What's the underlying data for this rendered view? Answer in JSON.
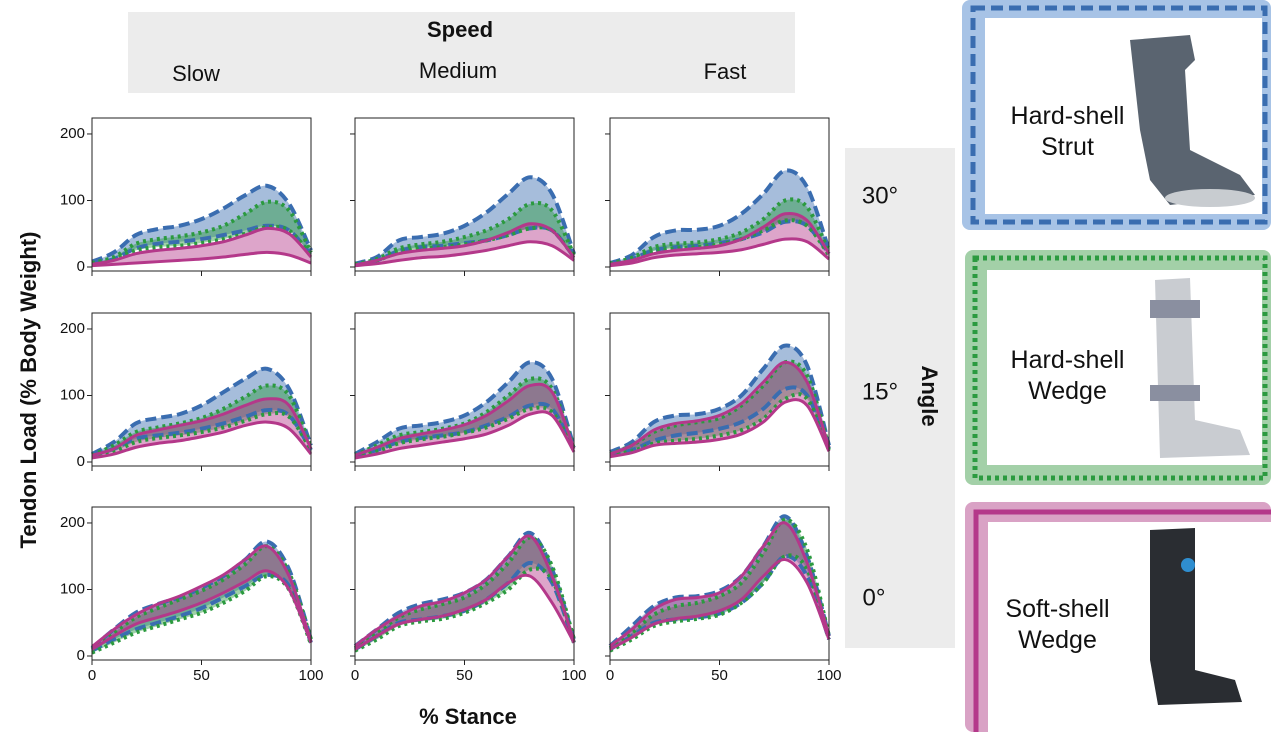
{
  "figure": {
    "speed_label": "Speed",
    "speed_levels": [
      "Slow",
      "Medium",
      "Fast"
    ],
    "angle_label": "Angle",
    "angle_levels": [
      "30°",
      "15°",
      "0°"
    ],
    "y_label": "Tendon Load (% Body Weight)",
    "x_label": "% Stance"
  },
  "legend": [
    {
      "name": "Hard-shell Strut",
      "color": "#3a6db0",
      "line_style": "dashed"
    },
    {
      "name": "Hard-shell Wedge",
      "color": "#2b9a3f",
      "line_style": "dotted"
    },
    {
      "name": "Soft-shell Wedge",
      "color": "#b4388a",
      "line_style": "solid"
    }
  ],
  "chart_data": [
    {
      "type": "band",
      "row": 0,
      "col": 0,
      "x": [
        0,
        10,
        20,
        30,
        40,
        50,
        60,
        70,
        80,
        90,
        100
      ],
      "xlim": [
        0,
        100
      ],
      "ylim": [
        -6,
        224
      ],
      "xticks": [
        0,
        50,
        100
      ],
      "yticks": [
        0,
        100,
        200
      ],
      "xtick_labels": false,
      "ytick_labels": true,
      "series": [
        {
          "upper": [
            8,
            22,
            48,
            57,
            62,
            72,
            88,
            108,
            122,
            95,
            25
          ],
          "lower": [
            5,
            12,
            28,
            35,
            38,
            42,
            48,
            55,
            62,
            55,
            18
          ]
        },
        {
          "upper": [
            6,
            15,
            35,
            42,
            46,
            52,
            62,
            80,
            98,
            85,
            22
          ],
          "lower": [
            4,
            12,
            25,
            30,
            32,
            36,
            42,
            50,
            60,
            55,
            18
          ]
        },
        {
          "upper": [
            4,
            10,
            20,
            25,
            28,
            32,
            38,
            48,
            58,
            50,
            15
          ],
          "lower": [
            2,
            4,
            6,
            8,
            10,
            12,
            15,
            19,
            22,
            18,
            6
          ]
        }
      ]
    },
    {
      "type": "band",
      "row": 0,
      "col": 1,
      "x": [
        0,
        10,
        20,
        30,
        40,
        50,
        60,
        70,
        80,
        90,
        100
      ],
      "xlim": [
        0,
        100
      ],
      "ylim": [
        -6,
        224
      ],
      "xticks": [
        0,
        50,
        100
      ],
      "yticks": [
        0,
        100,
        200
      ],
      "xtick_labels": false,
      "ytick_labels": false,
      "series": [
        {
          "upper": [
            5,
            15,
            40,
            45,
            50,
            62,
            82,
            110,
            135,
            110,
            20
          ],
          "lower": [
            4,
            10,
            24,
            30,
            32,
            36,
            40,
            48,
            58,
            55,
            15
          ]
        },
        {
          "upper": [
            4,
            12,
            28,
            34,
            38,
            45,
            55,
            72,
            95,
            85,
            18
          ],
          "lower": [
            3,
            10,
            22,
            28,
            30,
            34,
            40,
            48,
            58,
            55,
            15
          ]
        },
        {
          "upper": [
            3,
            10,
            20,
            25,
            28,
            32,
            40,
            52,
            65,
            55,
            14
          ],
          "lower": [
            2,
            5,
            10,
            14,
            16,
            20,
            25,
            32,
            38,
            32,
            10
          ]
        }
      ]
    },
    {
      "type": "band",
      "row": 0,
      "col": 2,
      "x": [
        0,
        10,
        20,
        30,
        40,
        50,
        60,
        70,
        80,
        90,
        100
      ],
      "xlim": [
        0,
        100
      ],
      "ylim": [
        -6,
        224
      ],
      "xticks": [
        0,
        50,
        100
      ],
      "yticks": [
        0,
        100,
        200
      ],
      "xtick_labels": false,
      "ytick_labels": false,
      "series": [
        {
          "upper": [
            6,
            18,
            45,
            55,
            56,
            62,
            80,
            110,
            145,
            120,
            25
          ],
          "lower": [
            5,
            12,
            25,
            30,
            32,
            36,
            42,
            52,
            68,
            62,
            20
          ]
        },
        {
          "upper": [
            5,
            14,
            30,
            35,
            37,
            42,
            52,
            72,
            100,
            90,
            22
          ],
          "lower": [
            4,
            10,
            24,
            28,
            30,
            34,
            42,
            55,
            70,
            62,
            18
          ]
        },
        {
          "upper": [
            4,
            10,
            20,
            25,
            28,
            32,
            42,
            60,
            80,
            70,
            20
          ],
          "lower": [
            2,
            6,
            14,
            18,
            20,
            22,
            26,
            34,
            42,
            38,
            12
          ]
        }
      ]
    },
    {
      "type": "band",
      "row": 1,
      "col": 0,
      "x": [
        0,
        10,
        20,
        30,
        40,
        50,
        60,
        70,
        80,
        90,
        100
      ],
      "xlim": [
        0,
        100
      ],
      "ylim": [
        -6,
        224
      ],
      "xticks": [
        0,
        50,
        100
      ],
      "yticks": [
        0,
        100,
        200
      ],
      "xtick_labels": false,
      "ytick_labels": true,
      "series": [
        {
          "upper": [
            12,
            30,
            58,
            66,
            72,
            85,
            105,
            125,
            140,
            110,
            25
          ],
          "lower": [
            10,
            20,
            35,
            40,
            44,
            50,
            58,
            68,
            78,
            70,
            18
          ]
        },
        {
          "upper": [
            10,
            25,
            45,
            52,
            58,
            66,
            80,
            98,
            115,
            100,
            22
          ],
          "lower": [
            8,
            16,
            30,
            36,
            40,
            45,
            52,
            62,
            72,
            68,
            18
          ]
        },
        {
          "upper": [
            10,
            20,
            40,
            48,
            55,
            62,
            72,
            85,
            95,
            85,
            20
          ],
          "lower": [
            6,
            12,
            22,
            28,
            32,
            38,
            45,
            55,
            60,
            50,
            12
          ]
        }
      ]
    },
    {
      "type": "band",
      "row": 1,
      "col": 1,
      "x": [
        0,
        10,
        20,
        30,
        40,
        50,
        60,
        70,
        80,
        90,
        100
      ],
      "xlim": [
        0,
        100
      ],
      "ylim": [
        -6,
        224
      ],
      "xticks": [
        0,
        50,
        100
      ],
      "yticks": [
        0,
        100,
        200
      ],
      "xtick_labels": false,
      "ytick_labels": false,
      "series": [
        {
          "upper": [
            12,
            30,
            50,
            55,
            60,
            70,
            90,
            120,
            150,
            125,
            22
          ],
          "lower": [
            10,
            18,
            30,
            36,
            40,
            45,
            55,
            68,
            85,
            80,
            18
          ]
        },
        {
          "upper": [
            10,
            25,
            40,
            45,
            50,
            58,
            75,
            100,
            125,
            110,
            20
          ],
          "lower": [
            8,
            16,
            28,
            34,
            38,
            44,
            52,
            65,
            80,
            75,
            18
          ]
        },
        {
          "upper": [
            10,
            22,
            35,
            42,
            48,
            56,
            70,
            92,
            115,
            105,
            20
          ],
          "lower": [
            6,
            12,
            20,
            25,
            30,
            35,
            42,
            55,
            72,
            70,
            15
          ]
        }
      ]
    },
    {
      "type": "band",
      "row": 1,
      "col": 2,
      "x": [
        0,
        10,
        20,
        30,
        40,
        50,
        60,
        70,
        80,
        90,
        100
      ],
      "xlim": [
        0,
        100
      ],
      "ylim": [
        -6,
        224
      ],
      "xticks": [
        0,
        50,
        100
      ],
      "yticks": [
        0,
        100,
        200
      ],
      "xtick_labels": false,
      "ytick_labels": false,
      "series": [
        {
          "upper": [
            15,
            30,
            60,
            70,
            72,
            80,
            100,
            140,
            175,
            145,
            25
          ],
          "lower": [
            10,
            18,
            32,
            40,
            44,
            50,
            60,
            80,
            110,
            100,
            20
          ]
        },
        {
          "upper": [
            12,
            25,
            45,
            55,
            60,
            66,
            85,
            115,
            150,
            130,
            22
          ],
          "lower": [
            10,
            16,
            28,
            32,
            35,
            40,
            48,
            65,
            95,
            95,
            18
          ]
        },
        {
          "upper": [
            12,
            25,
            48,
            58,
            62,
            70,
            88,
            120,
            150,
            120,
            22
          ],
          "lower": [
            8,
            14,
            25,
            28,
            30,
            34,
            42,
            60,
            90,
            85,
            16
          ]
        }
      ]
    },
    {
      "type": "band",
      "row": 2,
      "col": 0,
      "x": [
        0,
        10,
        20,
        30,
        40,
        50,
        60,
        70,
        80,
        90,
        100
      ],
      "xlim": [
        0,
        100
      ],
      "ylim": [
        -6,
        224
      ],
      "xticks": [
        0,
        50,
        100
      ],
      "yticks": [
        0,
        100,
        200
      ],
      "xtick_labels": true,
      "ytick_labels": true,
      "series": [
        {
          "upper": [
            12,
            40,
            65,
            78,
            88,
            102,
            120,
            145,
            172,
            130,
            25
          ],
          "lower": [
            8,
            25,
            40,
            50,
            60,
            72,
            88,
            105,
            122,
            105,
            20
          ]
        },
        {
          "upper": [
            10,
            35,
            58,
            72,
            85,
            98,
            115,
            138,
            165,
            125,
            25
          ],
          "lower": [
            5,
            20,
            35,
            45,
            55,
            65,
            80,
            98,
            120,
            100,
            18
          ]
        },
        {
          "upper": [
            14,
            40,
            62,
            78,
            90,
            105,
            122,
            145,
            165,
            120,
            22
          ],
          "lower": [
            10,
            30,
            48,
            58,
            68,
            80,
            95,
            112,
            128,
            100,
            20
          ]
        }
      ]
    },
    {
      "type": "band",
      "row": 2,
      "col": 1,
      "x": [
        0,
        10,
        20,
        30,
        40,
        50,
        60,
        70,
        80,
        90,
        100
      ],
      "xlim": [
        0,
        100
      ],
      "ylim": [
        -6,
        224
      ],
      "xticks": [
        0,
        50,
        100
      ],
      "yticks": [
        0,
        100,
        200
      ],
      "xtick_labels": true,
      "ytick_labels": false,
      "series": [
        {
          "upper": [
            15,
            40,
            65,
            78,
            85,
            95,
            115,
            150,
            185,
            130,
            25
          ],
          "lower": [
            10,
            30,
            50,
            55,
            60,
            68,
            85,
            110,
            140,
            110,
            20
          ]
        },
        {
          "upper": [
            12,
            35,
            58,
            70,
            78,
            88,
            108,
            140,
            178,
            135,
            25
          ],
          "lower": [
            8,
            25,
            45,
            52,
            56,
            65,
            80,
            100,
            130,
            115,
            20
          ]
        },
        {
          "upper": [
            15,
            40,
            60,
            75,
            82,
            95,
            115,
            150,
            180,
            120,
            22
          ],
          "lower": [
            10,
            30,
            48,
            55,
            60,
            70,
            85,
            110,
            120,
            80,
            20
          ]
        }
      ]
    },
    {
      "type": "band",
      "row": 2,
      "col": 2,
      "x": [
        0,
        10,
        20,
        30,
        40,
        50,
        60,
        70,
        80,
        90,
        100
      ],
      "xlim": [
        0,
        100
      ],
      "ylim": [
        -6,
        224
      ],
      "xticks": [
        0,
        50,
        100
      ],
      "yticks": [
        0,
        100,
        200
      ],
      "xtick_labels": true,
      "ytick_labels": false,
      "series": [
        {
          "upper": [
            15,
            45,
            75,
            88,
            90,
            98,
            120,
            165,
            210,
            150,
            30
          ],
          "lower": [
            10,
            30,
            50,
            55,
            58,
            64,
            80,
            110,
            150,
            120,
            25
          ]
        },
        {
          "upper": [
            12,
            35,
            62,
            75,
            80,
            90,
            110,
            155,
            205,
            160,
            30
          ],
          "lower": [
            8,
            25,
            45,
            52,
            56,
            62,
            80,
            110,
            150,
            130,
            25
          ]
        },
        {
          "upper": [
            15,
            40,
            70,
            85,
            88,
            95,
            120,
            165,
            200,
            140,
            30
          ],
          "lower": [
            10,
            28,
            48,
            56,
            60,
            68,
            85,
            120,
            145,
            110,
            25
          ]
        }
      ]
    }
  ]
}
